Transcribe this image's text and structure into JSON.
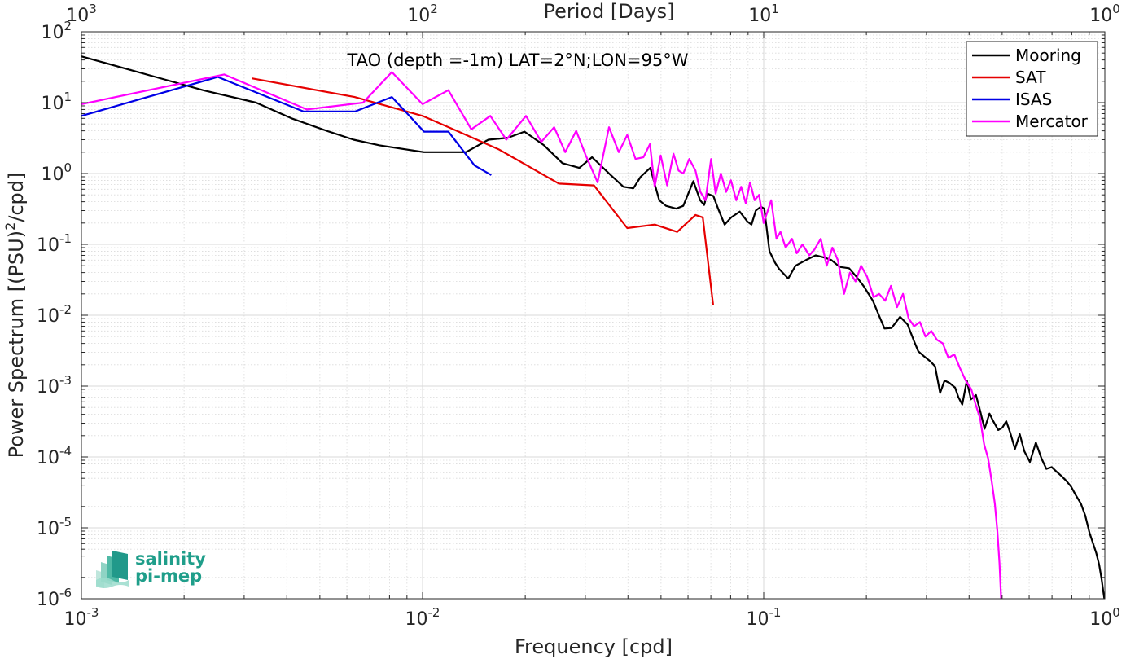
{
  "chart_data": {
    "type": "line",
    "title": "TAO (depth =-1m) LAT=2°N;LON=95°W",
    "xlabel": "Frequency [cpd]",
    "ylabel": "Power Spectrum [(PSU)",
    "ylabel_sup": "2",
    "ylabel_tail": "/cpd]",
    "top_xlabel": "Period [Days]",
    "xscale": "log",
    "yscale": "log",
    "xlim": [
      0.001,
      1
    ],
    "ylim": [
      1e-06,
      100
    ],
    "grid": true,
    "legend_position": "top-right",
    "xticks": [
      {
        "base": "10",
        "exp": "-3",
        "value": 0.001
      },
      {
        "base": "10",
        "exp": "-2",
        "value": 0.01
      },
      {
        "base": "10",
        "exp": "-1",
        "value": 0.1
      },
      {
        "base": "10",
        "exp": "0",
        "value": 1
      }
    ],
    "top_xticks": [
      {
        "base": "10",
        "exp": "3",
        "value": 0.001
      },
      {
        "base": "10",
        "exp": "2",
        "value": 0.01
      },
      {
        "base": "10",
        "exp": "1",
        "value": 0.1
      },
      {
        "base": "10",
        "exp": "0",
        "value": 1
      }
    ],
    "yticks": [
      {
        "base": "10",
        "exp": "2",
        "value": 100
      },
      {
        "base": "10",
        "exp": "1",
        "value": 10
      },
      {
        "base": "10",
        "exp": "0",
        "value": 1
      },
      {
        "base": "10",
        "exp": "-1",
        "value": 0.1
      },
      {
        "base": "10",
        "exp": "-2",
        "value": 0.01
      },
      {
        "base": "10",
        "exp": "-3",
        "value": 0.001
      },
      {
        "base": "10",
        "exp": "-4",
        "value": 0.0001
      },
      {
        "base": "10",
        "exp": "-5",
        "value": 1e-05
      },
      {
        "base": "10",
        "exp": "-6",
        "value": 1e-06
      }
    ],
    "series": [
      {
        "name": "Mooring",
        "color": "#000000",
        "x": [
          0.001,
          0.00165,
          0.00227,
          0.00325,
          0.00413,
          0.00532,
          0.00628,
          0.00748,
          0.0101,
          0.0134,
          0.0156,
          0.0178,
          0.0199,
          0.0227,
          0.0257,
          0.0288,
          0.0314,
          0.0356,
          0.0388,
          0.0415,
          0.0436,
          0.0465,
          0.0494,
          0.0517,
          0.0554,
          0.0581,
          0.0622,
          0.0651,
          0.0669,
          0.0683,
          0.0712,
          0.0735,
          0.0768,
          0.0803,
          0.0851,
          0.0896,
          0.0921,
          0.0948,
          0.0981,
          0.1004,
          0.104,
          0.108,
          0.111,
          0.118,
          0.124,
          0.133,
          0.142,
          0.151,
          0.158,
          0.167,
          0.178,
          0.187,
          0.196,
          0.209,
          0.218,
          0.226,
          0.237,
          0.251,
          0.264,
          0.276,
          0.284,
          0.296,
          0.309,
          0.318,
          0.329,
          0.339,
          0.351,
          0.364,
          0.372,
          0.382,
          0.394,
          0.405,
          0.419,
          0.431,
          0.444,
          0.459,
          0.471,
          0.487,
          0.501,
          0.514,
          0.528,
          0.545,
          0.563,
          0.581,
          0.603,
          0.628,
          0.652,
          0.674,
          0.699,
          0.722,
          0.746,
          0.771,
          0.797,
          0.822,
          0.851,
          0.876,
          0.902,
          0.924,
          0.944,
          0.963,
          0.978,
          0.991,
          1.0
        ],
        "y": [
          45,
          23,
          15,
          10,
          6.0,
          3.9,
          3.0,
          2.5,
          2.0,
          2.0,
          3.0,
          3.2,
          3.9,
          2.5,
          1.4,
          1.2,
          1.7,
          0.95,
          0.65,
          0.62,
          0.9,
          1.2,
          0.42,
          0.35,
          0.32,
          0.35,
          0.78,
          0.42,
          0.36,
          0.52,
          0.48,
          0.32,
          0.19,
          0.24,
          0.29,
          0.21,
          0.19,
          0.3,
          0.34,
          0.32,
          0.08,
          0.055,
          0.045,
          0.033,
          0.05,
          0.06,
          0.07,
          0.065,
          0.06,
          0.048,
          0.046,
          0.035,
          0.026,
          0.016,
          0.0098,
          0.0065,
          0.0066,
          0.0095,
          0.0074,
          0.0043,
          0.0031,
          0.0026,
          0.0022,
          0.0019,
          0.0008,
          0.0012,
          0.0011,
          0.00095,
          0.0007,
          0.00055,
          0.0012,
          0.00065,
          0.00075,
          0.00045,
          0.00025,
          0.00041,
          0.00032,
          0.00024,
          0.00026,
          0.00032,
          0.00022,
          0.00013,
          0.00021,
          0.00012,
          8.5e-05,
          0.00016,
          9.5e-05,
          6.8e-05,
          7.2e-05,
          6.2e-05,
          5.4e-05,
          4.6e-05,
          3.8e-05,
          2.9e-05,
          2.2e-05,
          1.5e-05,
          8.5e-06,
          6e-06,
          4.4e-06,
          3e-06,
          1.9e-06,
          1.2e-06,
          9e-07
        ]
      },
      {
        "name": "SAT",
        "color": "#e60000",
        "x": [
          0.00316,
          0.00632,
          0.01,
          0.0126,
          0.0167,
          0.0251,
          0.0318,
          0.0398,
          0.0479,
          0.0558,
          0.0631,
          0.0663,
          0.0711
        ],
        "y": [
          22,
          12,
          6.5,
          4.0,
          2.2,
          0.72,
          0.68,
          0.17,
          0.19,
          0.15,
          0.26,
          0.24,
          0.014
        ]
      },
      {
        "name": "ISAS",
        "color": "#0000e6",
        "x": [
          0.001,
          0.00251,
          0.00448,
          0.00634,
          0.00813,
          0.0101,
          0.0119,
          0.0142,
          0.0159
        ],
        "y": [
          6.5,
          23,
          7.5,
          7.5,
          12,
          3.9,
          3.9,
          1.3,
          0.95
        ]
      },
      {
        "name": "Mercator",
        "color": "#ff00ff",
        "x": [
          0.001,
          0.00262,
          0.00458,
          0.00669,
          0.00813,
          0.01,
          0.0119,
          0.0139,
          0.0158,
          0.0176,
          0.0201,
          0.0223,
          0.0243,
          0.0262,
          0.0282,
          0.0301,
          0.0326,
          0.0352,
          0.0376,
          0.0398,
          0.0421,
          0.0444,
          0.0464,
          0.0479,
          0.0499,
          0.0521,
          0.0544,
          0.0563,
          0.0581,
          0.0605,
          0.0631,
          0.0652,
          0.0675,
          0.0701,
          0.0723,
          0.0749,
          0.0776,
          0.0802,
          0.0831,
          0.0859,
          0.0886,
          0.0912,
          0.0941,
          0.0969,
          0.1,
          0.1052,
          0.109,
          0.112,
          0.116,
          0.121,
          0.125,
          0.13,
          0.136,
          0.141,
          0.147,
          0.153,
          0.159,
          0.165,
          0.172,
          0.179,
          0.186,
          0.193,
          0.201,
          0.21,
          0.218,
          0.227,
          0.236,
          0.246,
          0.256,
          0.266,
          0.276,
          0.287,
          0.298,
          0.31,
          0.322,
          0.335,
          0.348,
          0.362,
          0.376,
          0.391,
          0.406,
          0.418,
          0.431,
          0.443,
          0.455,
          0.466,
          0.476,
          0.484,
          0.491,
          0.497
        ],
        "y": [
          9.5,
          25,
          8.0,
          10,
          27,
          9.5,
          15,
          4.2,
          6.5,
          3.0,
          6.5,
          2.8,
          4.5,
          2.0,
          4.0,
          1.8,
          0.75,
          4.5,
          2.0,
          3.5,
          1.6,
          1.7,
          2.6,
          0.65,
          1.8,
          0.68,
          1.9,
          1.1,
          1.0,
          1.6,
          1.1,
          0.55,
          0.42,
          1.6,
          0.52,
          1.0,
          0.55,
          0.8,
          0.42,
          0.65,
          0.38,
          0.75,
          0.42,
          0.5,
          0.2,
          0.42,
          0.12,
          0.15,
          0.09,
          0.12,
          0.075,
          0.1,
          0.07,
          0.085,
          0.12,
          0.05,
          0.09,
          0.06,
          0.02,
          0.04,
          0.03,
          0.05,
          0.035,
          0.018,
          0.02,
          0.016,
          0.026,
          0.013,
          0.02,
          0.009,
          0.007,
          0.008,
          0.005,
          0.006,
          0.0045,
          0.004,
          0.0025,
          0.0028,
          0.0018,
          0.0012,
          0.0009,
          0.00055,
          0.00035,
          0.00015,
          9.5e-05,
          4.5e-05,
          2.2e-05,
          9e-06,
          3.2e-06,
          9e-07
        ]
      }
    ],
    "logo": {
      "line1": "salinity",
      "line2": "pi-mep"
    }
  }
}
